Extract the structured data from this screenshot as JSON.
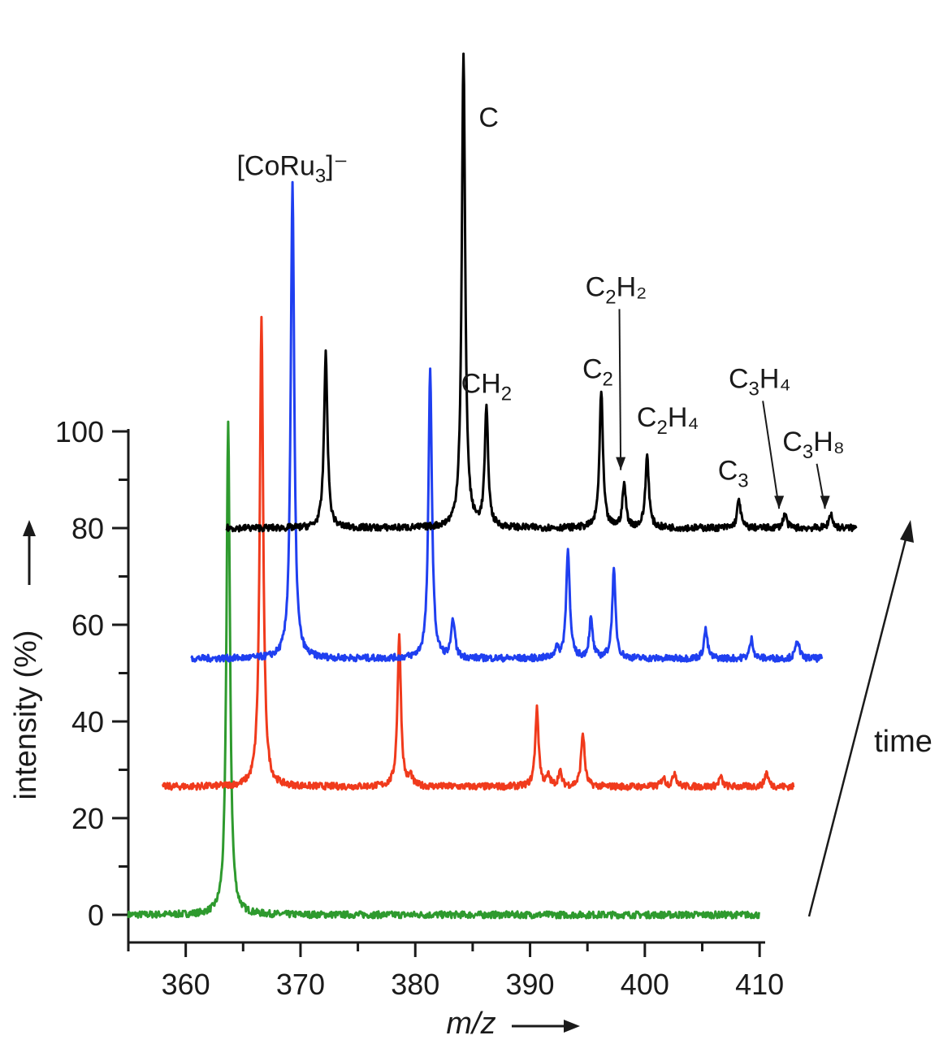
{
  "chart_data": {
    "type": "line",
    "title": "",
    "xlabel": "m/z",
    "ylabel": "intensity (%)",
    "xlim": [
      355,
      415
    ],
    "ylim": [
      0,
      100
    ],
    "x_ticks": [
      360,
      370,
      380,
      390,
      400,
      410
    ],
    "y_ticks": [
      0,
      20,
      40,
      60,
      80,
      100
    ],
    "time_label": "time",
    "colors": {
      "green": "#2e9a2e",
      "red": "#f03a1c",
      "blue": "#1f3ff0",
      "black": "#000000"
    },
    "series": [
      {
        "color_key": "green",
        "x_range": [
          355,
          410
        ],
        "baseline": 0,
        "offset_mz": 0,
        "offset_y": 0,
        "peaks": [
          [
            363.7,
            100
          ],
          [
            363.7,
            2
          ]
        ]
      },
      {
        "color_key": "red",
        "x_range": [
          358,
          413
        ],
        "baseline": 0,
        "offset_mz": 2.9,
        "offset_y": 26.5,
        "peaks": [
          [
            363.7,
            97
          ],
          [
            375.7,
            31
          ],
          [
            376.7,
            2
          ],
          [
            387.7,
            16
          ],
          [
            388.7,
            2
          ],
          [
            389.7,
            3
          ],
          [
            391.7,
            11
          ],
          [
            398.7,
            2
          ],
          [
            399.7,
            3
          ],
          [
            403.7,
            2
          ],
          [
            407.7,
            3
          ]
        ]
      },
      {
        "color_key": "blue",
        "x_range": [
          360.5,
          415.5
        ],
        "baseline": 0,
        "offset_mz": 5.6,
        "offset_y": 53,
        "peaks": [
          [
            363.7,
            98
          ],
          [
            375.7,
            60
          ],
          [
            377.7,
            8
          ],
          [
            386.7,
            2
          ],
          [
            387.7,
            23
          ],
          [
            389.7,
            8
          ],
          [
            391.7,
            18
          ],
          [
            399.7,
            6
          ],
          [
            403.7,
            4
          ],
          [
            407.7,
            4
          ]
        ]
      },
      {
        "color_key": "black",
        "x_range": [
          363.5,
          418.5
        ],
        "baseline": 0,
        "offset_mz": 8.5,
        "offset_y": 80,
        "peaks": [
          [
            363.7,
            36
          ],
          [
            375.7,
            98
          ],
          [
            377.7,
            24
          ],
          [
            387.7,
            28
          ],
          [
            389.7,
            9
          ],
          [
            391.7,
            15
          ],
          [
            399.7,
            6
          ],
          [
            403.7,
            3
          ],
          [
            407.7,
            3
          ]
        ]
      }
    ],
    "annotations": [
      {
        "main": "[CoRu",
        "sub": "3",
        "tail": "]⁻",
        "mz": 369.3,
        "y": 153
      },
      {
        "main": "C",
        "mz": 386.4,
        "y": 163,
        "vertical_line": true
      },
      {
        "main": "CH",
        "sub": "2",
        "tail": "",
        "mz": 386.2,
        "y": 108
      },
      {
        "main": "C",
        "sub": "2",
        "tail": "",
        "mz": 395.9,
        "y": 111
      },
      {
        "main": "C",
        "sub": "2",
        "tail": "H₂",
        "mz": 397.5,
        "y": 128,
        "arrow_to": [
          397.9,
          92
        ]
      },
      {
        "main": "C",
        "sub": "2",
        "tail": "H₄",
        "mz": 402.0,
        "y": 101
      },
      {
        "main": "C",
        "sub": "3",
        "tail": "",
        "mz": 407.7,
        "y": 90
      },
      {
        "main": "C",
        "sub": "3",
        "tail": "H₄",
        "mz": 410.0,
        "y": 109,
        "arrow_to": [
          411.7,
          84
        ]
      },
      {
        "main": "C",
        "sub": "3",
        "tail": "H₈",
        "mz": 414.7,
        "y": 96,
        "arrow_to": [
          415.7,
          84
        ]
      }
    ]
  }
}
